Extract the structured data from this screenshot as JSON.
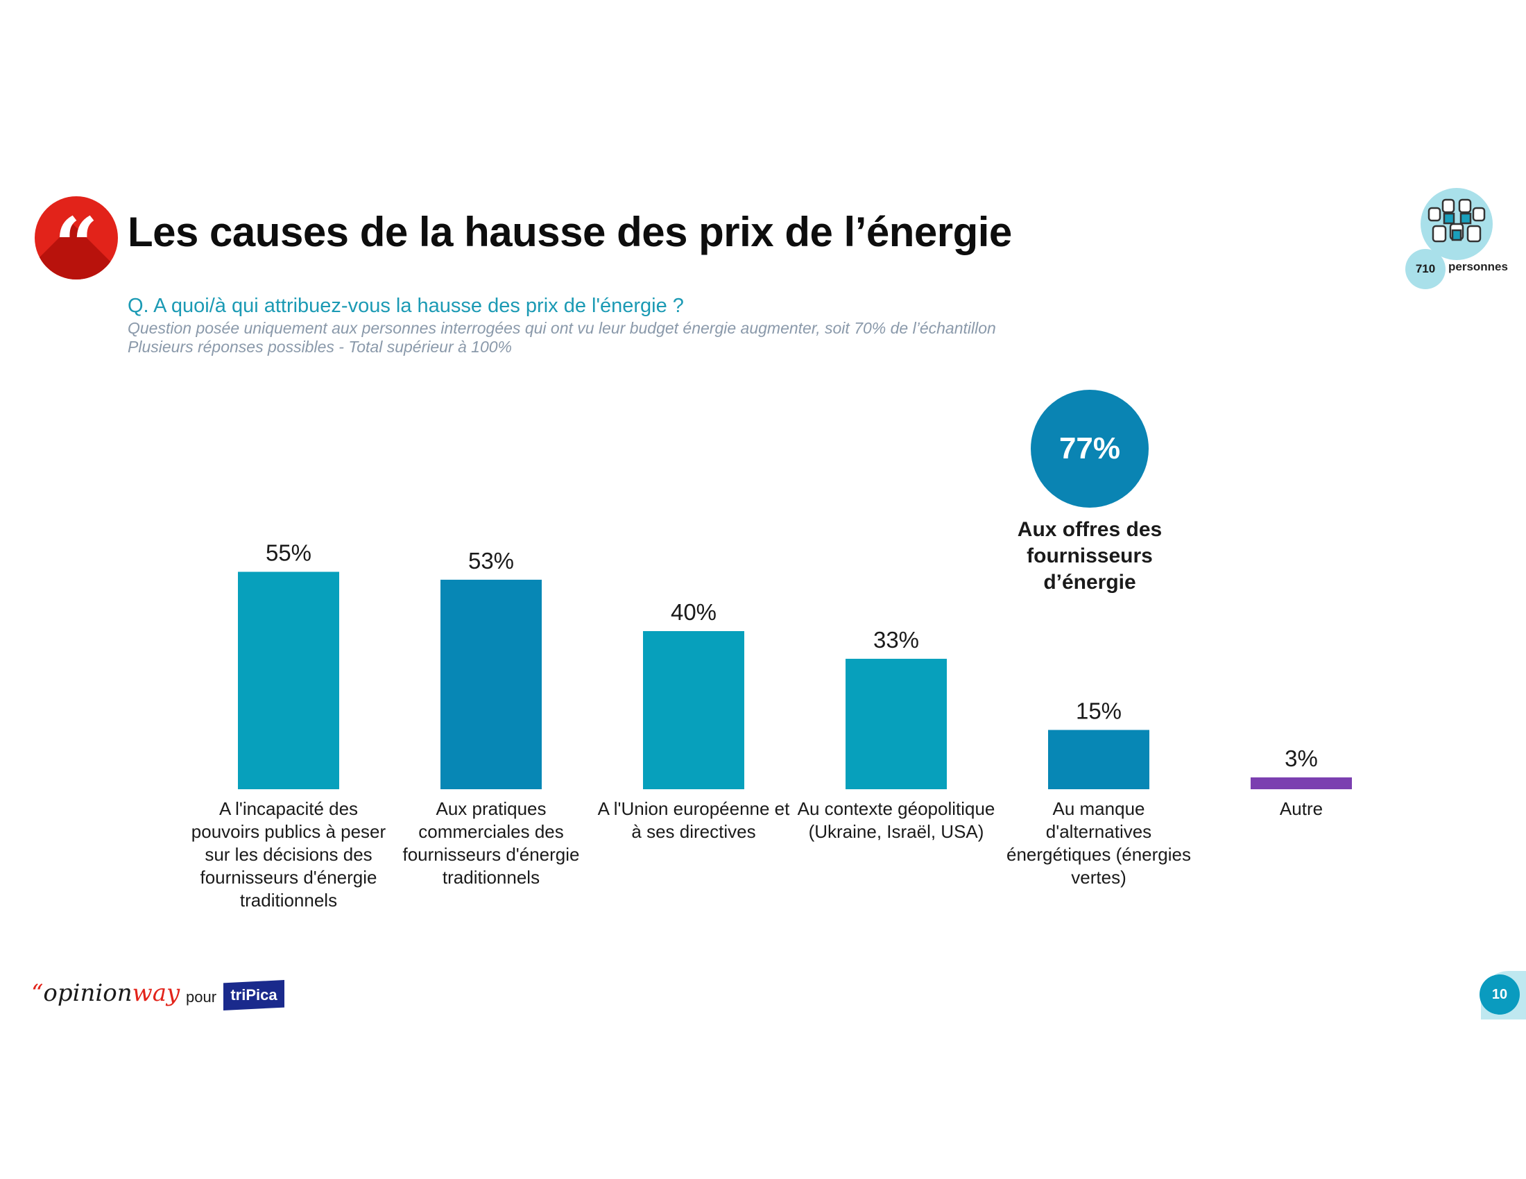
{
  "header": {
    "title": "Les causes de la hausse des prix de l’énergie",
    "question": "Q. A quoi/à qui attribuez-vous la hausse des prix de l'énergie ?",
    "note1": "Question posée uniquement aux personnes interrogées  qui ont vu leur budget énergie augmenter, soit 70% de l’échantillon",
    "note2": "Plusieurs réponses possibles - Total supérieur à 100%",
    "quote_icon": "quote-icon"
  },
  "sample": {
    "count": "710",
    "label": "personnes",
    "icon": "people-icon"
  },
  "highlight": {
    "value": "77%",
    "label": "Aux offres des fournisseurs d’énergie"
  },
  "chart_data": {
    "type": "bar",
    "title": "Les causes de la hausse des prix de l’énergie",
    "xlabel": "",
    "ylabel": "",
    "ylim": [
      0,
      60
    ],
    "grid": false,
    "categories": [
      "A l'incapacité des pouvoirs publics à peser sur les décisions des fournisseurs d'énergie traditionnels",
      "Aux pratiques commerciales des fournisseurs d'énergie traditionnels",
      "A l'Union européenne et à ses directives",
      "Au contexte géopolitique (Ukraine, Israël, USA)",
      "Au manque d'alternatives énergétiques (énergies vertes)",
      "Autre"
    ],
    "values": [
      55,
      53,
      40,
      33,
      15,
      3
    ],
    "value_labels": [
      "55%",
      "53%",
      "40%",
      "33%",
      "15%",
      "3%"
    ],
    "colors": [
      "#07a0bc",
      "#0787b5",
      "#07a0bc",
      "#07a0bc",
      "#0787b5",
      "#7b3fb0"
    ]
  },
  "footer": {
    "brand_quote": "“",
    "brand_opinion": "opinion",
    "brand_way": "way",
    "pour": "pour",
    "client": "triPica",
    "page_number": "10"
  }
}
